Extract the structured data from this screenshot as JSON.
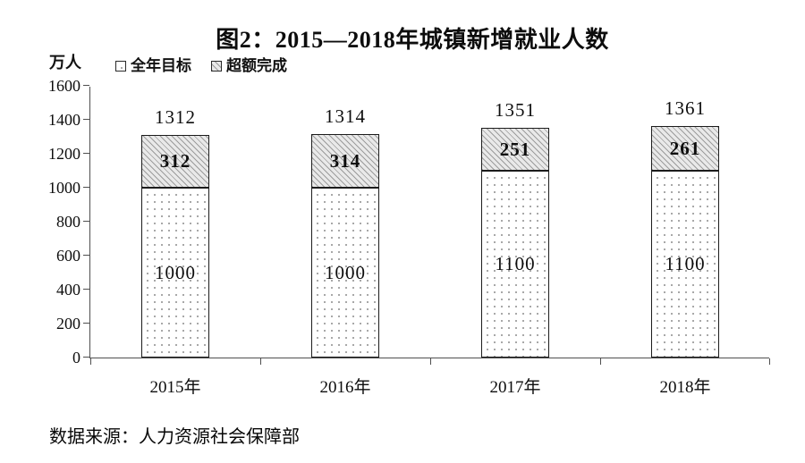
{
  "chart_data": {
    "type": "bar",
    "stacked": true,
    "title": "图2：2015—2018年城镇新增就业人数",
    "unit_label": "万人",
    "categories": [
      "2015年",
      "2016年",
      "2017年",
      "2018年"
    ],
    "series": [
      {
        "name": "全年目标",
        "pattern": "dots",
        "values": [
          1000,
          1000,
          1100,
          1100
        ],
        "bold_labels": false
      },
      {
        "name": "超额完成",
        "pattern": "hatch",
        "values": [
          312,
          314,
          251,
          261
        ],
        "bold_labels": true
      }
    ],
    "totals": [
      1312,
      1314,
      1351,
      1361
    ],
    "ylim": [
      0,
      1600
    ],
    "ytick_step": 200,
    "yticks": [
      0,
      200,
      400,
      600,
      800,
      1000,
      1200,
      1400,
      1600
    ],
    "legend_position": "top-left",
    "grid": false
  },
  "colors": {
    "text": "#0d0d0d",
    "axis": "#4f4f4f",
    "bar_border": "#1c1c1c",
    "hatch_fill": "#e9e9e9",
    "hatch_line": "#9c9c9c",
    "dot": "#a8a8a8",
    "background": "#ffffff"
  },
  "footer": {
    "source_note": "数据来源：人力资源社会保障部"
  }
}
